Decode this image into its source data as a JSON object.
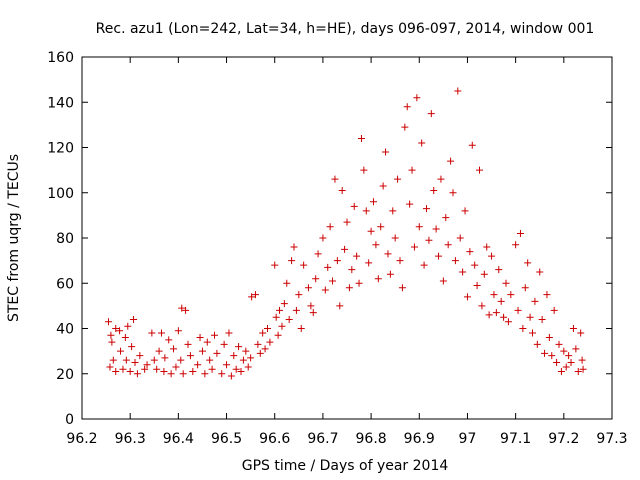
{
  "chart_data": {
    "type": "scatter",
    "title": "Rec. azu1 (Lon=242, Lat=34, h=HE), days 096-097, 2014, window 001",
    "xlabel": "GPS time / Days of year 2014",
    "ylabel": "STEC from uqrg / TECUs",
    "xlim": [
      96.2,
      97.3
    ],
    "ylim": [
      0,
      160
    ],
    "xticks": [
      "96.2",
      "96.3",
      "96.4",
      "96.5",
      "96.6",
      "96.7",
      "96.8",
      "96.9",
      "97",
      "97.1",
      "97.2",
      "97.3"
    ],
    "yticks": [
      "0",
      "20",
      "40",
      "60",
      "80",
      "100",
      "120",
      "140",
      "160"
    ],
    "grid": false,
    "marker": "+",
    "marker_color": "#cc0000",
    "series": [
      {
        "points": [
          [
            96.255,
            43
          ],
          [
            96.26,
            37
          ],
          [
            96.262,
            34
          ],
          [
            96.258,
            23
          ],
          [
            96.265,
            26
          ],
          [
            96.27,
            21
          ],
          [
            96.27,
            40
          ],
          [
            96.278,
            39
          ],
          [
            96.28,
            30
          ],
          [
            96.285,
            22
          ],
          [
            96.29,
            36
          ],
          [
            96.292,
            26
          ],
          [
            96.295,
            41
          ],
          [
            96.3,
            21
          ],
          [
            96.303,
            32
          ],
          [
            96.307,
            44
          ],
          [
            96.31,
            25
          ],
          [
            96.315,
            20
          ],
          [
            96.32,
            28
          ],
          [
            96.33,
            22
          ],
          [
            96.335,
            24
          ],
          [
            96.345,
            38
          ],
          [
            96.35,
            26
          ],
          [
            96.355,
            22
          ],
          [
            96.36,
            30
          ],
          [
            96.365,
            38
          ],
          [
            96.37,
            21
          ],
          [
            96.372,
            27
          ],
          [
            96.38,
            35
          ],
          [
            96.385,
            20
          ],
          [
            96.39,
            31
          ],
          [
            96.395,
            23
          ],
          [
            96.4,
            39
          ],
          [
            96.405,
            26
          ],
          [
            96.407,
            49
          ],
          [
            96.41,
            20
          ],
          [
            96.415,
            48
          ],
          [
            96.42,
            33
          ],
          [
            96.425,
            28
          ],
          [
            96.43,
            21
          ],
          [
            96.44,
            24
          ],
          [
            96.445,
            36
          ],
          [
            96.45,
            30
          ],
          [
            96.455,
            20
          ],
          [
            96.46,
            34
          ],
          [
            96.465,
            26
          ],
          [
            96.47,
            22
          ],
          [
            96.475,
            37
          ],
          [
            96.48,
            29
          ],
          [
            96.49,
            20
          ],
          [
            96.495,
            33
          ],
          [
            96.5,
            24
          ],
          [
            96.505,
            38
          ],
          [
            96.51,
            19
          ],
          [
            96.515,
            28
          ],
          [
            96.52,
            22
          ],
          [
            96.525,
            32
          ],
          [
            96.53,
            21
          ],
          [
            96.535,
            26
          ],
          [
            96.54,
            30
          ],
          [
            96.545,
            23
          ],
          [
            96.55,
            27
          ],
          [
            96.552,
            54
          ],
          [
            96.56,
            55
          ],
          [
            96.565,
            33
          ],
          [
            96.57,
            29
          ],
          [
            96.575,
            38
          ],
          [
            96.58,
            31
          ],
          [
            96.585,
            40
          ],
          [
            96.59,
            34
          ],
          [
            96.6,
            68
          ],
          [
            96.603,
            45
          ],
          [
            96.607,
            37
          ],
          [
            96.61,
            48
          ],
          [
            96.615,
            41
          ],
          [
            96.62,
            51
          ],
          [
            96.625,
            60
          ],
          [
            96.63,
            44
          ],
          [
            96.635,
            70
          ],
          [
            96.64,
            76
          ],
          [
            96.645,
            48
          ],
          [
            96.65,
            55
          ],
          [
            96.655,
            40
          ],
          [
            96.66,
            68
          ],
          [
            96.67,
            58
          ],
          [
            96.675,
            50
          ],
          [
            96.68,
            47
          ],
          [
            96.685,
            62
          ],
          [
            96.69,
            73
          ],
          [
            96.7,
            80
          ],
          [
            96.705,
            57
          ],
          [
            96.71,
            67
          ],
          [
            96.715,
            85
          ],
          [
            96.72,
            61
          ],
          [
            96.725,
            106
          ],
          [
            96.73,
            70
          ],
          [
            96.735,
            50
          ],
          [
            96.74,
            101
          ],
          [
            96.745,
            75
          ],
          [
            96.75,
            87
          ],
          [
            96.755,
            58
          ],
          [
            96.76,
            66
          ],
          [
            96.765,
            94
          ],
          [
            96.77,
            72
          ],
          [
            96.775,
            60
          ],
          [
            96.78,
            124
          ],
          [
            96.785,
            110
          ],
          [
            96.79,
            92
          ],
          [
            96.795,
            69
          ],
          [
            96.8,
            83
          ],
          [
            96.805,
            96
          ],
          [
            96.81,
            77
          ],
          [
            96.815,
            62
          ],
          [
            96.82,
            85
          ],
          [
            96.825,
            103
          ],
          [
            96.83,
            118
          ],
          [
            96.835,
            73
          ],
          [
            96.84,
            64
          ],
          [
            96.845,
            92
          ],
          [
            96.85,
            80
          ],
          [
            96.855,
            106
          ],
          [
            96.86,
            70
          ],
          [
            96.865,
            58
          ],
          [
            96.87,
            129
          ],
          [
            96.875,
            138
          ],
          [
            96.88,
            95
          ],
          [
            96.885,
            110
          ],
          [
            96.89,
            76
          ],
          [
            96.895,
            142
          ],
          [
            96.9,
            85
          ],
          [
            96.905,
            122
          ],
          [
            96.91,
            68
          ],
          [
            96.915,
            93
          ],
          [
            96.92,
            79
          ],
          [
            96.925,
            135
          ],
          [
            96.93,
            101
          ],
          [
            96.935,
            84
          ],
          [
            96.94,
            72
          ],
          [
            96.945,
            106
          ],
          [
            96.95,
            61
          ],
          [
            96.955,
            89
          ],
          [
            96.96,
            77
          ],
          [
            96.965,
            114
          ],
          [
            96.97,
            100
          ],
          [
            96.975,
            70
          ],
          [
            96.98,
            145
          ],
          [
            96.985,
            80
          ],
          [
            96.99,
            65
          ],
          [
            96.995,
            92
          ],
          [
            97.0,
            54
          ],
          [
            97.005,
            74
          ],
          [
            97.01,
            121
          ],
          [
            97.015,
            68
          ],
          [
            97.02,
            59
          ],
          [
            97.025,
            110
          ],
          [
            97.03,
            50
          ],
          [
            97.035,
            64
          ],
          [
            97.04,
            76
          ],
          [
            97.045,
            46
          ],
          [
            97.05,
            72
          ],
          [
            97.055,
            55
          ],
          [
            97.06,
            47
          ],
          [
            97.065,
            66
          ],
          [
            97.07,
            52
          ],
          [
            97.075,
            45
          ],
          [
            97.08,
            60
          ],
          [
            97.085,
            43
          ],
          [
            97.09,
            55
          ],
          [
            97.1,
            77
          ],
          [
            97.105,
            48
          ],
          [
            97.11,
            82
          ],
          [
            97.115,
            40
          ],
          [
            97.12,
            58
          ],
          [
            97.125,
            69
          ],
          [
            97.13,
            45
          ],
          [
            97.135,
            38
          ],
          [
            97.14,
            52
          ],
          [
            97.145,
            33
          ],
          [
            97.15,
            65
          ],
          [
            97.155,
            44
          ],
          [
            97.16,
            29
          ],
          [
            97.165,
            55
          ],
          [
            97.17,
            36
          ],
          [
            97.175,
            28
          ],
          [
            97.18,
            48
          ],
          [
            97.185,
            25
          ],
          [
            97.19,
            33
          ],
          [
            97.195,
            21
          ],
          [
            97.2,
            30
          ],
          [
            97.205,
            23
          ],
          [
            97.21,
            28
          ],
          [
            97.215,
            25
          ],
          [
            97.22,
            40
          ],
          [
            97.225,
            31
          ],
          [
            97.23,
            21
          ],
          [
            97.235,
            38
          ],
          [
            97.238,
            26
          ],
          [
            97.24,
            22
          ]
        ]
      }
    ]
  }
}
